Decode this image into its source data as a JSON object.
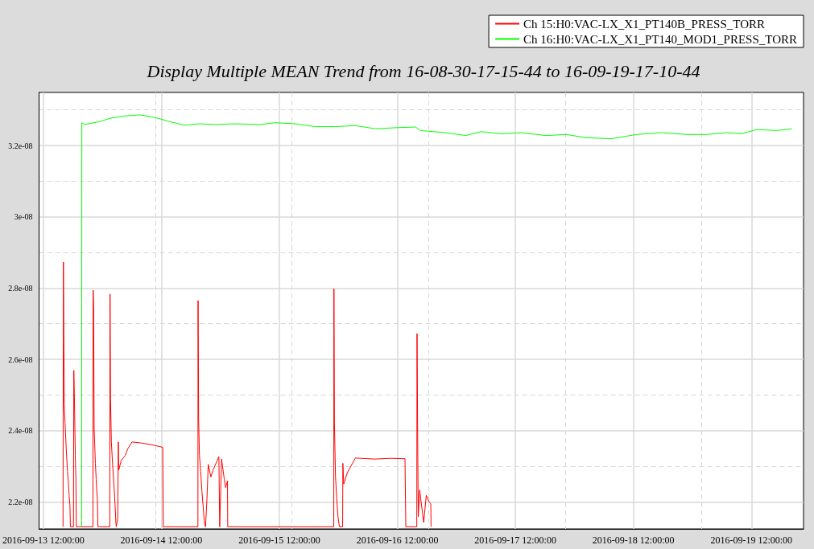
{
  "chart_data": {
    "type": "line",
    "title": "Display Multiple MEAN Trend from 16-08-30-17-15-44 to 16-09-19-17-10-44",
    "xlim": [
      "2016-09-13T11:08",
      "2016-09-19T22:36"
    ],
    "xticks": [
      {
        "value": "2016-09-13T12:00",
        "label": "2016-09-13 12:00:00"
      },
      {
        "value": "2016-09-14T12:00",
        "label": "2016-09-14 12:00:00"
      },
      {
        "value": "2016-09-15T12:00",
        "label": "2016-09-15 12:00:00"
      },
      {
        "value": "2016-09-16T12:00",
        "label": "2016-09-16 12:00:00"
      },
      {
        "value": "2016-09-17T12:00",
        "label": "2016-09-17 12:00:00"
      },
      {
        "value": "2016-09-18T12:00",
        "label": "2016-09-18 12:00:00"
      },
      {
        "value": "2016-09-19T12:00",
        "label": "2016-09-19 12:00:00"
      }
    ],
    "ylim": [
      2.124e-08,
      3.349e-08
    ],
    "yticks": [
      {
        "value": 2.2e-08,
        "label": "2.2e-08"
      },
      {
        "value": 2.4e-08,
        "label": "2.4e-08"
      },
      {
        "value": 2.6e-08,
        "label": "2.6e-08"
      },
      {
        "value": 2.8e-08,
        "label": "2.8e-08"
      },
      {
        "value": 3e-08,
        "label": "3e-08"
      },
      {
        "value": 3.2e-08,
        "label": "3.2e-08"
      }
    ],
    "grid": true,
    "legend": "top right",
    "series": [
      {
        "name": "Ch 15:H0:VAC-LX_X1_PT140B_PRESS_TORR",
        "color": "#ff0000",
        "x": [
          "2016-09-13T16:00",
          "2016-09-13T16:05",
          "2016-09-13T16:15",
          "2016-09-13T16:25",
          "2016-09-13T16:40",
          "2016-09-13T16:55",
          "2016-09-13T17:05",
          "2016-09-13T17:15",
          "2016-09-13T17:25",
          "2016-09-13T17:30",
          "2016-09-13T18:08",
          "2016-09-13T18:12",
          "2016-09-13T18:20",
          "2016-09-13T18:30",
          "2016-09-13T18:38",
          "2016-09-13T18:42",
          "2016-09-13T22:05",
          "2016-09-13T22:08",
          "2016-09-13T22:14",
          "2016-09-13T22:20",
          "2016-09-13T22:35",
          "2016-09-13T22:45",
          "2016-09-13T22:52",
          "2016-09-13T23:00",
          "2016-09-13T23:06",
          "2016-09-14T01:31",
          "2016-09-14T01:34",
          "2016-09-14T01:40",
          "2016-09-14T01:50",
          "2016-09-14T02:05",
          "2016-09-14T02:20",
          "2016-09-14T02:35",
          "2016-09-14T02:45",
          "2016-09-14T02:50",
          "2016-09-14T03:08",
          "2016-09-14T03:15",
          "2016-09-14T03:20",
          "2016-09-14T03:50",
          "2016-09-14T04:39",
          "2016-09-14T05:13",
          "2016-09-14T06:02",
          "2016-09-14T07:56",
          "2016-09-14T10:07",
          "2016-09-14T12:17",
          "2016-09-14T12:24",
          "2016-09-14T19:26",
          "2016-09-14T19:28",
          "2016-09-14T19:35",
          "2016-09-14T19:45",
          "2016-09-14T20:00",
          "2016-09-14T20:15",
          "2016-09-14T20:30",
          "2016-09-14T20:45",
          "2016-09-14T20:59",
          "2016-09-14T21:16",
          "2016-09-14T21:32",
          "2016-09-14T22:04",
          "2016-09-14T22:37",
          "2016-09-14T23:42",
          "2016-09-14T23:52",
          "2016-09-15T00:15",
          "2016-09-15T00:48",
          "2016-09-15T01:04",
          "2016-09-15T01:27",
          "2016-09-15T01:30",
          "2016-09-15T23:04",
          "2016-09-15T23:06",
          "2016-09-15T23:12",
          "2016-09-15T23:25",
          "2016-09-15T23:40",
          "2016-09-15T23:55",
          "2016-09-16T00:13",
          "2016-09-16T00:52",
          "2016-09-16T00:55",
          "2016-09-16T01:05",
          "2016-09-16T01:50",
          "2016-09-16T03:28",
          "2016-09-16T07:17",
          "2016-09-16T10:33",
          "2016-09-16T13:33",
          "2016-09-16T13:43",
          "2016-09-16T15:57",
          "2016-09-16T16:00",
          "2016-09-16T16:08",
          "2016-09-16T16:15",
          "2016-09-16T16:32",
          "2016-09-16T17:21",
          "2016-09-16T17:53",
          "2016-09-16T18:26",
          "2016-09-16T18:48",
          "2016-09-16T18:51"
        ],
        "values": [
          2.13e-08,
          2.873e-08,
          2.473e-08,
          2.42e-08,
          2.345e-08,
          2.285e-08,
          2.255e-08,
          2.218e-08,
          2.188e-08,
          2.13e-08,
          2.13e-08,
          2.569e-08,
          2.48e-08,
          2.33e-08,
          2.255e-08,
          2.13e-08,
          2.13e-08,
          2.794e-08,
          2.744e-08,
          2.406e-08,
          2.308e-08,
          2.263e-08,
          2.233e-08,
          2.206e-08,
          2.13e-08,
          2.13e-08,
          2.783e-08,
          2.488e-08,
          2.368e-08,
          2.305e-08,
          2.255e-08,
          2.192e-08,
          2.142e-08,
          2.13e-08,
          2.154e-08,
          2.368e-08,
          2.289e-08,
          2.316e-08,
          2.33e-08,
          2.35e-08,
          2.368e-08,
          2.365e-08,
          2.36e-08,
          2.353e-08,
          2.13e-08,
          2.13e-08,
          2.765e-08,
          2.432e-08,
          2.33e-08,
          2.285e-08,
          2.229e-08,
          2.188e-08,
          2.142e-08,
          2.13e-08,
          2.206e-08,
          2.305e-08,
          2.27e-08,
          2.292e-08,
          2.327e-08,
          2.13e-08,
          2.32e-08,
          2.263e-08,
          2.24e-08,
          2.259e-08,
          2.13e-08,
          2.13e-08,
          2.798e-08,
          2.42e-08,
          2.271e-08,
          2.21e-08,
          2.158e-08,
          2.13e-08,
          2.13e-08,
          2.308e-08,
          2.25e-08,
          2.282e-08,
          2.323e-08,
          2.32e-08,
          2.322e-08,
          2.321e-08,
          2.13e-08,
          2.13e-08,
          2.672e-08,
          2.368e-08,
          2.158e-08,
          2.233e-08,
          2.142e-08,
          2.218e-08,
          2.2e-08,
          2.195e-08,
          2.13e-08
        ]
      },
      {
        "name": "Ch 16:H0:VAC-LX_X1_PT140_MOD1_PRESS_TORR",
        "color": "#00ff00",
        "x": [
          "2016-09-13T19:47",
          "2016-09-13T19:50",
          "2016-09-13T20:22",
          "2016-09-13T23:25",
          "2016-09-14T01:28",
          "2016-09-14T04:31",
          "2016-09-14T07:35",
          "2016-09-14T10:39",
          "2016-09-14T13:43",
          "2016-09-14T16:46",
          "2016-09-14T19:50",
          "2016-09-14T22:53",
          "2016-09-15T02:58",
          "2016-09-15T08:04",
          "2016-09-15T11:08",
          "2016-09-15T15:13",
          "2016-09-15T19:18",
          "2016-09-15T23:23",
          "2016-09-16T03:28",
          "2016-09-16T07:32",
          "2016-09-16T11:37",
          "2016-09-16T15:42",
          "2016-09-16T16:44",
          "2016-09-16T21:50",
          "2016-09-17T01:55",
          "2016-09-17T04:58",
          "2016-09-17T09:04",
          "2016-09-17T13:08",
          "2016-09-17T18:14",
          "2016-09-17T22:19",
          "2016-09-18T02:24",
          "2016-09-18T07:30",
          "2016-09-18T12:37",
          "2016-09-18T17:43",
          "2016-09-18T22:49",
          "2016-09-19T02:54",
          "2016-09-19T06:59",
          "2016-09-19T10:02",
          "2016-09-19T13:06",
          "2016-09-19T17:11",
          "2016-09-19T20:14"
        ],
        "values": [
          2.13e-08,
          3.264e-08,
          3.259e-08,
          3.267e-08,
          3.276e-08,
          3.283e-08,
          3.286e-08,
          3.279e-08,
          3.267e-08,
          3.257e-08,
          3.261e-08,
          3.259e-08,
          3.261e-08,
          3.259e-08,
          3.264e-08,
          3.261e-08,
          3.253e-08,
          3.253e-08,
          3.256e-08,
          3.247e-08,
          3.25e-08,
          3.252e-08,
          3.242e-08,
          3.236e-08,
          3.228e-08,
          3.239e-08,
          3.233e-08,
          3.236e-08,
          3.228e-08,
          3.231e-08,
          3.222e-08,
          3.219e-08,
          3.231e-08,
          3.236e-08,
          3.231e-08,
          3.231e-08,
          3.236e-08,
          3.233e-08,
          3.245e-08,
          3.242e-08,
          3.247e-08
        ]
      }
    ]
  }
}
